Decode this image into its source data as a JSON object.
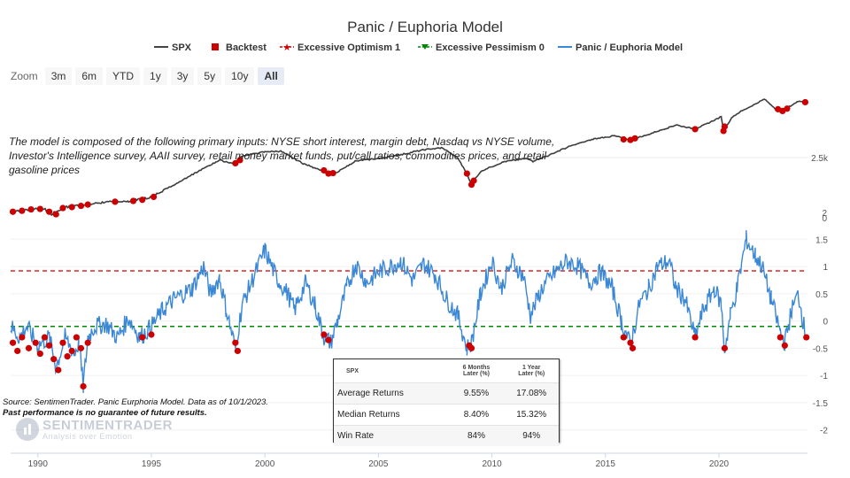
{
  "chart_data": {
    "type": "line",
    "title": "Panic / Euphoria Model",
    "legend": [
      {
        "name": "SPX",
        "color": "#444444",
        "marker": "line"
      },
      {
        "name": "Backtest",
        "color": "#cc0000",
        "marker": "square"
      },
      {
        "name": "Excessive Optimism 1",
        "color": "#cc0000",
        "marker": "star"
      },
      {
        "name": "Excessive Pessimism 0",
        "color": "#008800",
        "marker": "triangle"
      },
      {
        "name": "Panic / Euphoria Model",
        "color": "#3a87d6",
        "marker": "line"
      }
    ],
    "legend_position": "top-center",
    "xaxis": {
      "ticks": [
        "1990",
        "1995",
        "2000",
        "2005",
        "2010",
        "2015",
        "2020"
      ],
      "range": [
        1988.8,
        2023.9
      ]
    },
    "upper_axis": {
      "ticks": [
        "2.5k"
      ],
      "tick_extra": "2"
    },
    "lower_axis": {
      "ticks": [
        "1.5",
        "1",
        "0.5",
        "0",
        "-0.5",
        "-1",
        "-1.5",
        "-2"
      ],
      "ylim": [
        -2.2,
        1.7
      ],
      "extra_label": "0"
    },
    "reference_lines": [
      {
        "name": "Excessive Optimism 1",
        "value": 0.92,
        "color": "#dd2222",
        "style": "dashed"
      },
      {
        "name": "Excessive Pessimism 0",
        "value": -0.1,
        "color": "#008800",
        "style": "dashed"
      }
    ],
    "spx_series": [
      [
        1988.8,
        1.0
      ],
      [
        1989.5,
        1.05
      ],
      [
        1990.2,
        1.08
      ],
      [
        1990.6,
        0.95
      ],
      [
        1991.2,
        1.1
      ],
      [
        1992.0,
        1.15
      ],
      [
        1993.0,
        1.22
      ],
      [
        1994.0,
        1.24
      ],
      [
        1995.0,
        1.35
      ],
      [
        1996.0,
        1.75
      ],
      [
        1997.0,
        2.25
      ],
      [
        1998.0,
        2.9
      ],
      [
        1998.6,
        2.7
      ],
      [
        1999.0,
        3.15
      ],
      [
        2000.0,
        3.45
      ],
      [
        2000.7,
        3.5
      ],
      [
        2001.2,
        3.05
      ],
      [
        2001.7,
        2.7
      ],
      [
        2002.5,
        2.35
      ],
      [
        2002.8,
        2.2
      ],
      [
        2003.2,
        2.25
      ],
      [
        2004.0,
        2.85
      ],
      [
        2005.0,
        3.0
      ],
      [
        2006.0,
        3.25
      ],
      [
        2007.0,
        3.6
      ],
      [
        2007.8,
        3.75
      ],
      [
        2008.5,
        3.0
      ],
      [
        2009.1,
        1.75
      ],
      [
        2009.5,
        2.3
      ],
      [
        2010.5,
        2.8
      ],
      [
        2011.5,
        3.0
      ],
      [
        2011.8,
        2.85
      ],
      [
        2012.5,
        3.2
      ],
      [
        2013.5,
        3.9
      ],
      [
        2014.5,
        4.5
      ],
      [
        2015.4,
        4.8
      ],
      [
        2016.1,
        4.4
      ],
      [
        2016.8,
        4.85
      ],
      [
        2017.8,
        5.7
      ],
      [
        2018.1,
        6.0
      ],
      [
        2018.95,
        5.5
      ],
      [
        2019.5,
        6.2
      ],
      [
        2020.1,
        7.1
      ],
      [
        2020.2,
        5.3
      ],
      [
        2020.6,
        7.1
      ],
      [
        2021.0,
        8.0
      ],
      [
        2021.5,
        9.0
      ],
      [
        2022.0,
        10.2
      ],
      [
        2022.5,
        8.3
      ],
      [
        2022.8,
        8.0
      ],
      [
        2023.2,
        9.0
      ],
      [
        2023.55,
        9.9
      ],
      [
        2023.75,
        9.6
      ]
    ],
    "model_series": [
      [
        1988.8,
        -0.1
      ],
      [
        1989.2,
        -0.3
      ],
      [
        1989.5,
        -0.1
      ],
      [
        1990.0,
        -0.45
      ],
      [
        1990.5,
        -0.3
      ],
      [
        1990.8,
        -0.85
      ],
      [
        1991.2,
        -0.3
      ],
      [
        1991.6,
        -0.6
      ],
      [
        1991.8,
        -0.4
      ],
      [
        1992.0,
        -1.2
      ],
      [
        1992.2,
        -0.3
      ],
      [
        1992.5,
        -0.1
      ],
      [
        1993.0,
        -0.05
      ],
      [
        1993.5,
        -0.3
      ],
      [
        1994.0,
        0.05
      ],
      [
        1994.5,
        -0.3
      ],
      [
        1995.0,
        -0.1
      ],
      [
        1995.5,
        0.2
      ],
      [
        1996.0,
        0.4
      ],
      [
        1996.8,
        0.6
      ],
      [
        1997.3,
        1.0
      ],
      [
        1997.6,
        0.5
      ],
      [
        1998.0,
        0.8
      ],
      [
        1998.3,
        0.2
      ],
      [
        1998.7,
        -0.5
      ],
      [
        1999.0,
        0.3
      ],
      [
        1999.5,
        0.8
      ],
      [
        2000.0,
        1.3
      ],
      [
        2000.5,
        0.8
      ],
      [
        2001.0,
        0.5
      ],
      [
        2001.3,
        0.2
      ],
      [
        2001.8,
        0.7
      ],
      [
        2002.2,
        0.3
      ],
      [
        2002.6,
        -0.3
      ],
      [
        2002.9,
        -0.4
      ],
      [
        2003.2,
        0.0
      ],
      [
        2003.6,
        0.6
      ],
      [
        2004.0,
        1.05
      ],
      [
        2004.5,
        0.7
      ],
      [
        2005.0,
        0.9
      ],
      [
        2005.5,
        1.0
      ],
      [
        2006.0,
        1.1
      ],
      [
        2006.5,
        0.75
      ],
      [
        2007.0,
        1.05
      ],
      [
        2007.5,
        0.85
      ],
      [
        2008.0,
        0.4
      ],
      [
        2008.5,
        0.1
      ],
      [
        2008.9,
        -0.5
      ],
      [
        2009.1,
        -0.4
      ],
      [
        2009.5,
        0.5
      ],
      [
        2010.0,
        1.1
      ],
      [
        2010.4,
        0.6
      ],
      [
        2010.9,
        1.1
      ],
      [
        2011.4,
        0.8
      ],
      [
        2011.7,
        0.1
      ],
      [
        2012.2,
        0.6
      ],
      [
        2012.8,
        0.9
      ],
      [
        2013.3,
        1.1
      ],
      [
        2013.8,
        1.0
      ],
      [
        2014.3,
        0.7
      ],
      [
        2014.8,
        0.9
      ],
      [
        2015.3,
        0.6
      ],
      [
        2015.7,
        0.0
      ],
      [
        2016.1,
        -0.45
      ],
      [
        2016.5,
        0.3
      ],
      [
        2016.9,
        0.6
      ],
      [
        2017.3,
        1.0
      ],
      [
        2017.8,
        1.1
      ],
      [
        2018.1,
        0.6
      ],
      [
        2018.5,
        0.4
      ],
      [
        2018.95,
        -0.3
      ],
      [
        2019.3,
        0.2
      ],
      [
        2019.8,
        0.6
      ],
      [
        2020.1,
        0.3
      ],
      [
        2020.25,
        -0.55
      ],
      [
        2020.5,
        0.1
      ],
      [
        2020.8,
        0.6
      ],
      [
        2021.2,
        1.5
      ],
      [
        2021.6,
        1.2
      ],
      [
        2021.9,
        1.0
      ],
      [
        2022.3,
        0.4
      ],
      [
        2022.7,
        -0.2
      ],
      [
        2022.9,
        -0.4
      ],
      [
        2023.2,
        0.2
      ],
      [
        2023.5,
        0.5
      ],
      [
        2023.7,
        0.0
      ],
      [
        2023.85,
        -0.3
      ]
    ],
    "spx_backtest_points": [
      [
        1988.9,
        1.0
      ],
      [
        1989.3,
        1.02
      ],
      [
        1989.7,
        1.05
      ],
      [
        1990.1,
        1.06
      ],
      [
        1990.5,
        1.0
      ],
      [
        1990.8,
        0.95
      ],
      [
        1991.1,
        1.08
      ],
      [
        1991.5,
        1.1
      ],
      [
        1991.9,
        1.13
      ],
      [
        1992.2,
        1.16
      ],
      [
        1993.4,
        1.23
      ],
      [
        1994.2,
        1.25
      ],
      [
        1994.6,
        1.28
      ],
      [
        1995.1,
        1.36
      ],
      [
        1998.7,
        2.72
      ],
      [
        1998.9,
        2.9
      ],
      [
        2002.6,
        2.35
      ],
      [
        2002.8,
        2.2
      ],
      [
        2003.0,
        2.22
      ],
      [
        2008.9,
        2.2
      ],
      [
        2009.1,
        1.75
      ],
      [
        2009.2,
        1.9
      ],
      [
        2015.8,
        4.45
      ],
      [
        2016.1,
        4.4
      ],
      [
        2016.3,
        4.55
      ],
      [
        2018.95,
        5.5
      ],
      [
        2020.2,
        5.3
      ],
      [
        2020.25,
        5.8
      ],
      [
        2022.6,
        8.3
      ],
      [
        2022.8,
        8.0
      ],
      [
        2023.0,
        8.4
      ],
      [
        2023.8,
        9.6
      ]
    ],
    "model_backtest_points": [
      [
        1988.9,
        -0.4
      ],
      [
        1989.1,
        -0.55
      ],
      [
        1989.3,
        -0.3
      ],
      [
        1989.6,
        -0.5
      ],
      [
        1989.9,
        -0.4
      ],
      [
        1990.1,
        -0.6
      ],
      [
        1990.3,
        -0.3
      ],
      [
        1990.5,
        -0.45
      ],
      [
        1990.7,
        -0.7
      ],
      [
        1990.9,
        -0.9
      ],
      [
        1991.1,
        -0.4
      ],
      [
        1991.3,
        -0.65
      ],
      [
        1991.5,
        -0.55
      ],
      [
        1991.7,
        -0.3
      ],
      [
        1991.9,
        -0.5
      ],
      [
        1992.0,
        -1.2
      ],
      [
        1992.2,
        -0.4
      ],
      [
        1994.6,
        -0.3
      ],
      [
        1995.0,
        -0.25
      ],
      [
        1998.7,
        -0.4
      ],
      [
        1998.8,
        -0.55
      ],
      [
        2002.6,
        -0.25
      ],
      [
        2002.8,
        -0.35
      ],
      [
        2009.0,
        -0.45
      ],
      [
        2009.1,
        -0.5
      ],
      [
        2015.8,
        -0.3
      ],
      [
        2016.1,
        -0.4
      ],
      [
        2016.2,
        -0.5
      ],
      [
        2018.95,
        -0.3
      ],
      [
        2020.25,
        -0.5
      ],
      [
        2022.7,
        -0.3
      ],
      [
        2022.9,
        -0.45
      ],
      [
        2023.85,
        -0.3
      ]
    ],
    "stats_table": {
      "columns": [
        "SPX",
        "6 Months Later (%)",
        "1 Year Later (%)"
      ],
      "rows": [
        [
          "Average Returns",
          "9.55%",
          "17.08%"
        ],
        [
          "Median Returns",
          "8.40%",
          "15.32%"
        ],
        [
          "Win Rate",
          "84%",
          "94%"
        ]
      ]
    }
  },
  "zoom": {
    "label": "Zoom",
    "options": [
      "3m",
      "6m",
      "YTD",
      "1y",
      "3y",
      "5y",
      "10y",
      "All"
    ],
    "active": "All"
  },
  "description": "The model is composed of the following primary inputs: NYSE short interest, margin debt, Nasdaq vs NYSE volume, Investor's Intelligence survey, AAII survey, retail money market funds, put/call ratios, commodities prices, and retail gasoline prices",
  "source": "Source: SentimenTrader. Panic Eurphoria Model. Data as of 10/1/2023.",
  "disclaimer": "Past performance is no guarantee of future results.",
  "logo": {
    "name": "SENTIMENTRADER",
    "tagline": "Analysis over Emotion"
  },
  "stats_header": {
    "c1": "SPX",
    "c2a": "6 Months",
    "c2b": "Later (%)",
    "c3a": "1 Year",
    "c3b": "Later (%)"
  },
  "stats_rows": [
    {
      "label": "Average Returns",
      "v1": "9.55%",
      "v2": "17.08%"
    },
    {
      "label": "Median Returns",
      "v1": "8.40%",
      "v2": "15.32%"
    },
    {
      "label": "Win Rate",
      "v1": "84%",
      "v2": "94%"
    }
  ]
}
